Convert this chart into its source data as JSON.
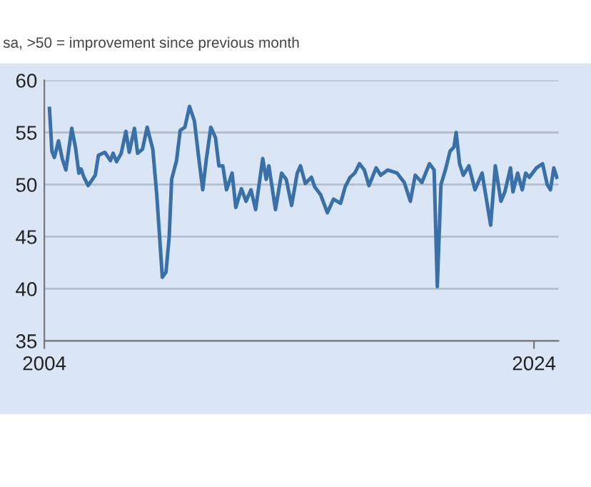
{
  "chart_data": {
    "type": "line",
    "subtitle": "sa, >50 = improvement since previous month",
    "x": [
      2004.21,
      2004.31,
      2004.41,
      2004.58,
      2004.73,
      2004.88,
      2005.12,
      2005.27,
      2005.41,
      2005.5,
      2005.6,
      2005.79,
      2006.08,
      2006.21,
      2006.47,
      2006.7,
      2006.81,
      2006.95,
      2007.14,
      2007.33,
      2007.47,
      2007.68,
      2007.81,
      2008.01,
      2008.2,
      2008.43,
      2008.59,
      2008.82,
      2008.97,
      2009.1,
      2009.2,
      2009.4,
      2009.55,
      2009.74,
      2009.93,
      2010.13,
      2010.32,
      2010.47,
      2010.61,
      2010.8,
      2010.99,
      2011.13,
      2011.29,
      2011.44,
      2011.67,
      2011.82,
      2012.05,
      2012.24,
      2012.44,
      2012.63,
      2012.92,
      2013.06,
      2013.17,
      2013.44,
      2013.69,
      2013.88,
      2014.1,
      2014.33,
      2014.46,
      2014.66,
      2014.91,
      2015.04,
      2015.29,
      2015.56,
      2015.81,
      2016.1,
      2016.29,
      2016.49,
      2016.68,
      2016.87,
      2017.07,
      2017.26,
      2017.55,
      2017.74,
      2018.03,
      2018.41,
      2018.7,
      2018.95,
      2019.15,
      2019.42,
      2019.73,
      2019.92,
      2020.05,
      2020.2,
      2020.38,
      2020.57,
      2020.73,
      2020.82,
      2020.96,
      2021.11,
      2021.34,
      2021.59,
      2021.88,
      2022.23,
      2022.42,
      2022.65,
      2022.81,
      2023.04,
      2023.14,
      2023.33,
      2023.52,
      2023.66,
      2023.81,
      2024.1,
      2024.35,
      2024.54,
      2024.67,
      2024.81,
      2024.93
    ],
    "values": [
      57.3,
      53.2,
      52.6,
      54.2,
      52.5,
      51.4,
      55.4,
      53.6,
      51.1,
      51.5,
      50.8,
      49.9,
      50.9,
      52.8,
      53.1,
      52.3,
      53.0,
      52.2,
      53.0,
      55.1,
      53.1,
      55.4,
      53.0,
      53.4,
      55.5,
      53.4,
      49.1,
      41.1,
      41.6,
      45.0,
      50.5,
      52.3,
      55.2,
      55.5,
      57.5,
      56.1,
      52.3,
      49.5,
      52.3,
      55.5,
      54.5,
      51.8,
      51.8,
      49.5,
      51.1,
      47.8,
      49.6,
      48.4,
      49.5,
      47.6,
      52.5,
      50.5,
      51.8,
      47.6,
      51.1,
      50.5,
      48.0,
      51.1,
      51.8,
      50.1,
      50.7,
      49.8,
      49.0,
      47.3,
      48.6,
      48.2,
      49.8,
      50.7,
      51.1,
      52.0,
      51.4,
      49.9,
      51.6,
      50.9,
      51.4,
      51.1,
      50.2,
      48.4,
      50.9,
      50.2,
      52.0,
      51.4,
      40.2,
      50.0,
      51.4,
      53.2,
      53.6,
      55.0,
      52.0,
      50.9,
      51.8,
      49.5,
      51.1,
      46.1,
      51.8,
      48.4,
      49.3,
      51.6,
      49.3,
      51.1,
      49.5,
      51.1,
      50.7,
      51.6,
      52.0,
      50.0,
      49.5,
      51.6,
      50.7
    ],
    "color": "#3a70a8",
    "xlim": [
      2004,
      2025
    ],
    "xticks": [
      2004,
      2024
    ],
    "ylim": [
      35,
      60
    ],
    "yticks": [
      35,
      40,
      45,
      50,
      55,
      60
    ],
    "grid": "y",
    "marker": "none",
    "line_style": "solid"
  }
}
